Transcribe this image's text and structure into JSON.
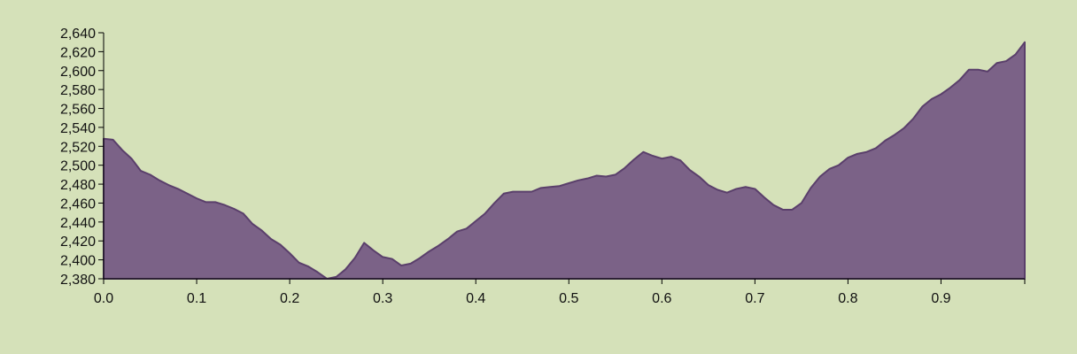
{
  "colors": {
    "background": "#d5e1b9",
    "area_fill": "#7b6287",
    "area_stroke": "#5a3f6b",
    "axis": "#000000"
  },
  "chart_data": {
    "type": "area",
    "title": "",
    "xlabel": "",
    "ylabel": "",
    "xlim": [
      0,
      0.99
    ],
    "ylim": [
      2380,
      2640
    ],
    "grid": false,
    "legend": "none",
    "x_ticks": [
      {
        "value": 0.0,
        "label": "0.0"
      },
      {
        "value": 0.1,
        "label": "0.1"
      },
      {
        "value": 0.2,
        "label": "0.2"
      },
      {
        "value": 0.3,
        "label": "0.3"
      },
      {
        "value": 0.4,
        "label": "0.4"
      },
      {
        "value": 0.5,
        "label": "0.5"
      },
      {
        "value": 0.6,
        "label": "0.6"
      },
      {
        "value": 0.7,
        "label": "0.7"
      },
      {
        "value": 0.8,
        "label": "0.8"
      },
      {
        "value": 0.9,
        "label": "0.9"
      }
    ],
    "y_ticks": [
      {
        "value": 2380,
        "label": "2,380"
      },
      {
        "value": 2400,
        "label": "2,400"
      },
      {
        "value": 2420,
        "label": "2,420"
      },
      {
        "value": 2440,
        "label": "2,440"
      },
      {
        "value": 2460,
        "label": "2,460"
      },
      {
        "value": 2480,
        "label": "2,480"
      },
      {
        "value": 2500,
        "label": "2,500"
      },
      {
        "value": 2520,
        "label": "2,520"
      },
      {
        "value": 2540,
        "label": "2,540"
      },
      {
        "value": 2560,
        "label": "2,560"
      },
      {
        "value": 2580,
        "label": "2,580"
      },
      {
        "value": 2600,
        "label": "2,600"
      },
      {
        "value": 2620,
        "label": "2,620"
      },
      {
        "value": 2640,
        "label": "2,640"
      }
    ],
    "x": [
      0.0,
      0.01,
      0.02,
      0.03,
      0.04,
      0.05,
      0.06,
      0.07,
      0.08,
      0.09,
      0.1,
      0.11,
      0.12,
      0.13,
      0.14,
      0.15,
      0.16,
      0.17,
      0.18,
      0.19,
      0.2,
      0.21,
      0.22,
      0.23,
      0.24,
      0.25,
      0.26,
      0.27,
      0.28,
      0.29,
      0.3,
      0.31,
      0.32,
      0.33,
      0.34,
      0.35,
      0.36,
      0.37,
      0.38,
      0.39,
      0.4,
      0.41,
      0.42,
      0.43,
      0.44,
      0.45,
      0.46,
      0.47,
      0.48,
      0.49,
      0.5,
      0.51,
      0.52,
      0.53,
      0.54,
      0.55,
      0.56,
      0.57,
      0.58,
      0.59,
      0.6,
      0.61,
      0.62,
      0.63,
      0.64,
      0.65,
      0.66,
      0.67,
      0.68,
      0.69,
      0.7,
      0.71,
      0.72,
      0.73,
      0.74,
      0.75,
      0.76,
      0.77,
      0.78,
      0.79,
      0.8,
      0.81,
      0.82,
      0.83,
      0.84,
      0.85,
      0.86,
      0.87,
      0.88,
      0.89,
      0.9,
      0.91,
      0.92,
      0.93,
      0.94,
      0.95,
      0.96,
      0.97,
      0.98,
      0.99
    ],
    "values": [
      2528,
      2527,
      2516,
      2507,
      2494,
      2490,
      2484,
      2479,
      2475,
      2470,
      2465,
      2461,
      2461,
      2458,
      2454,
      2449,
      2438,
      2431,
      2422,
      2416,
      2407,
      2397,
      2393,
      2387,
      2380,
      2382,
      2390,
      2402,
      2418,
      2410,
      2403,
      2401,
      2394,
      2396,
      2402,
      2409,
      2415,
      2422,
      2430,
      2433,
      2441,
      2449,
      2460,
      2470,
      2472,
      2472,
      2472,
      2476,
      2477,
      2478,
      2481,
      2484,
      2486,
      2489,
      2488,
      2490,
      2497,
      2506,
      2514,
      2510,
      2507,
      2509,
      2505,
      2495,
      2488,
      2479,
      2474,
      2471,
      2475,
      2477,
      2475,
      2466,
      2458,
      2453,
      2453,
      2460,
      2476,
      2488,
      2496,
      2500,
      2508,
      2512,
      2514,
      2518,
      2526,
      2532,
      2539,
      2549,
      2562,
      2570,
      2575,
      2582,
      2590,
      2601,
      2601,
      2599,
      2608,
      2610,
      2617,
      2630
    ]
  }
}
